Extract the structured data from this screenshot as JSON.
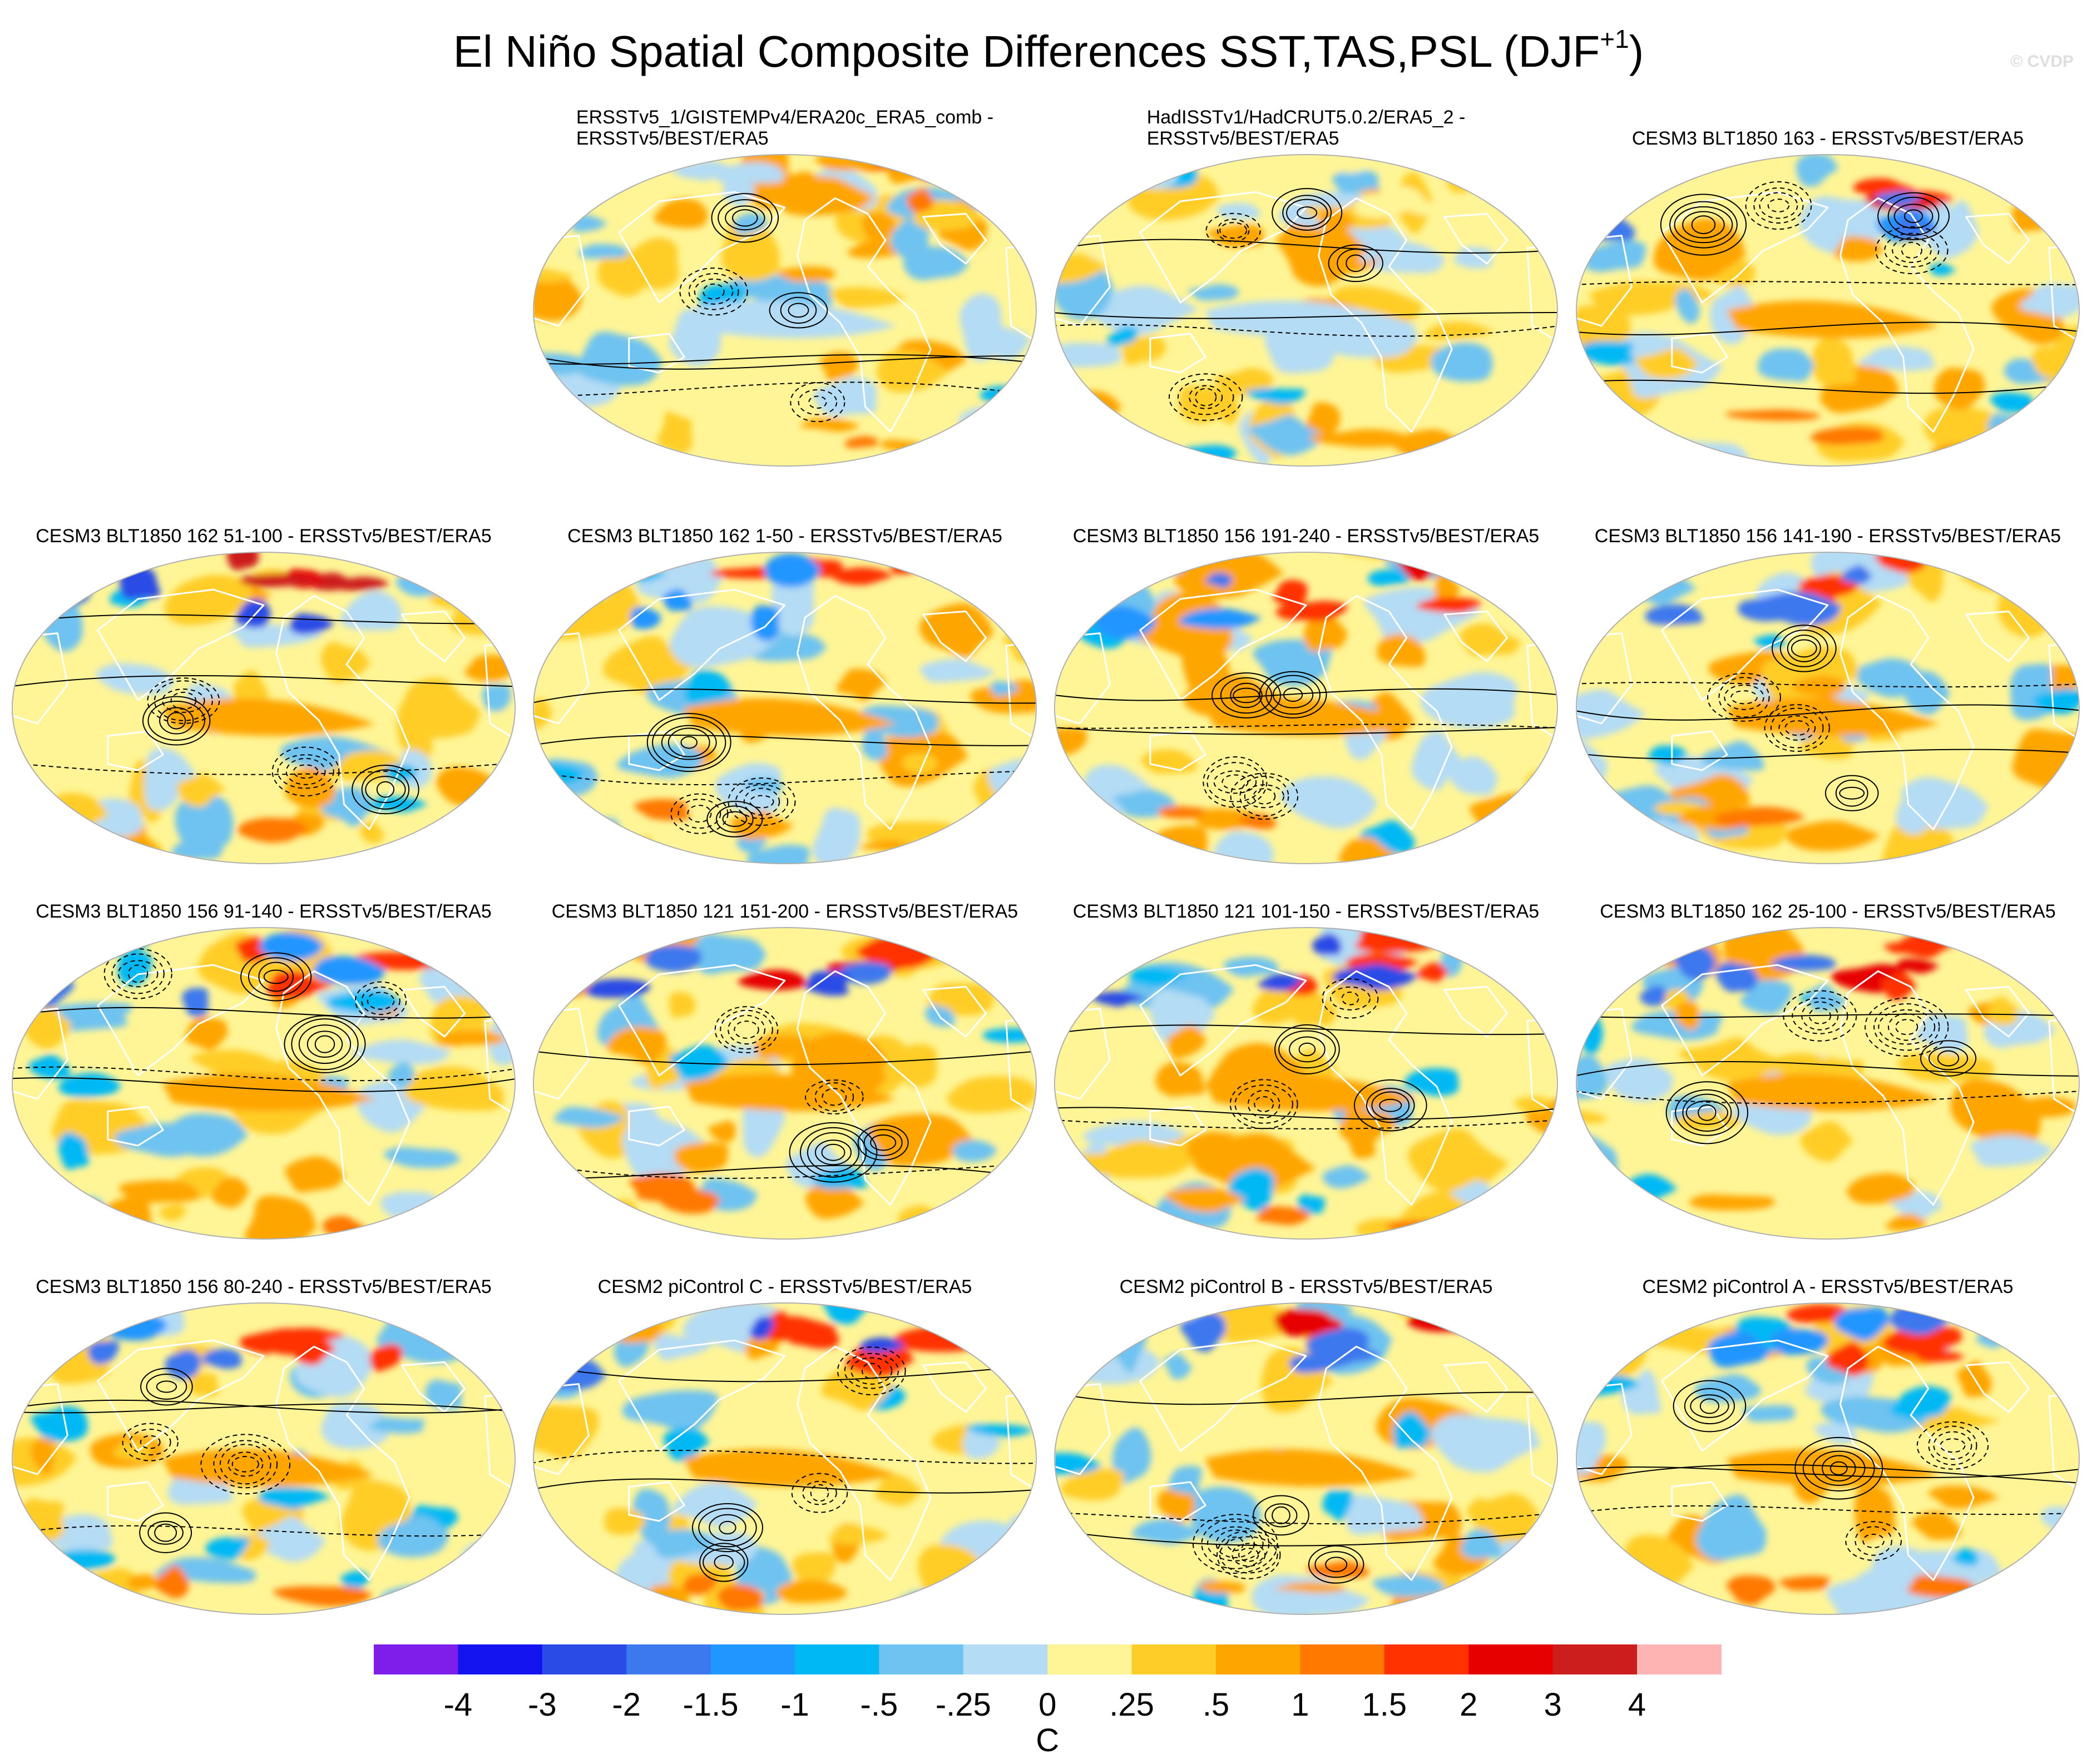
{
  "title": {
    "main": "El Niño Spatial Composite Differences SST,TAS,PSL (DJF",
    "superscript": "+1",
    "close": ")"
  },
  "copyright": "© CVDP",
  "panels": [
    {
      "title": "ERSSTv5_1/GISTEMPv4/ERA20c_ERA5_comb -\nERSSTv5/BEST/ERA5",
      "style": 0
    },
    {
      "title": "HadISSTv1/HadCRUT5.0.2/ERA5_2 -\nERSSTv5/BEST/ERA5",
      "style": 1
    },
    {
      "title": "CESM3 BLT1850 163 - ERSSTv5/BEST/ERA5",
      "style": 2
    },
    {
      "title": "CESM3 BLT1850 162 51-100 - ERSSTv5/BEST/ERA5",
      "style": 3
    },
    {
      "title": "CESM3 BLT1850 162 1-50 - ERSSTv5/BEST/ERA5",
      "style": 4
    },
    {
      "title": "CESM3 BLT1850 156 191-240 - ERSSTv5/BEST/ERA5",
      "style": 5
    },
    {
      "title": "CESM3 BLT1850 156 141-190 - ERSSTv5/BEST/ERA5",
      "style": 6
    },
    {
      "title": "CESM3 BLT1850 156 91-140 - ERSSTv5/BEST/ERA5",
      "style": 7
    },
    {
      "title": "CESM3 BLT1850 121 151-200 - ERSSTv5/BEST/ERA5",
      "style": 8
    },
    {
      "title": "CESM3 BLT1850 121 101-150 - ERSSTv5/BEST/ERA5",
      "style": 9
    },
    {
      "title": "CESM3 BLT1850 162 25-100 - ERSSTv5/BEST/ERA5",
      "style": 10
    },
    {
      "title": "CESM3 BLT1850 156 80-240 - ERSSTv5/BEST/ERA5",
      "style": 11
    },
    {
      "title": "CESM2 piControl C - ERSSTv5/BEST/ERA5",
      "style": 12
    },
    {
      "title": "CESM2 piControl B - ERSSTv5/BEST/ERA5",
      "style": 13
    },
    {
      "title": "CESM2 piControl A - ERSSTv5/BEST/ERA5",
      "style": 14
    }
  ],
  "colorbar": {
    "colors": [
      "#7f1eea",
      "#1414f0",
      "#2a4be6",
      "#3c78ee",
      "#2096ff",
      "#00b9f4",
      "#6ec3f0",
      "#b4dcf4",
      "#fff596",
      "#ffcd28",
      "#ffa500",
      "#ff7800",
      "#ff3200",
      "#e60000",
      "#cd1e1e",
      "#ffb4b4"
    ],
    "labels": [
      "-4",
      "-3",
      "-2",
      "-1.5",
      "-1",
      "-.5",
      "-.25",
      "0",
      ".25",
      ".5",
      "1",
      "1.5",
      "2",
      "3",
      "4"
    ],
    "units": "C"
  }
}
